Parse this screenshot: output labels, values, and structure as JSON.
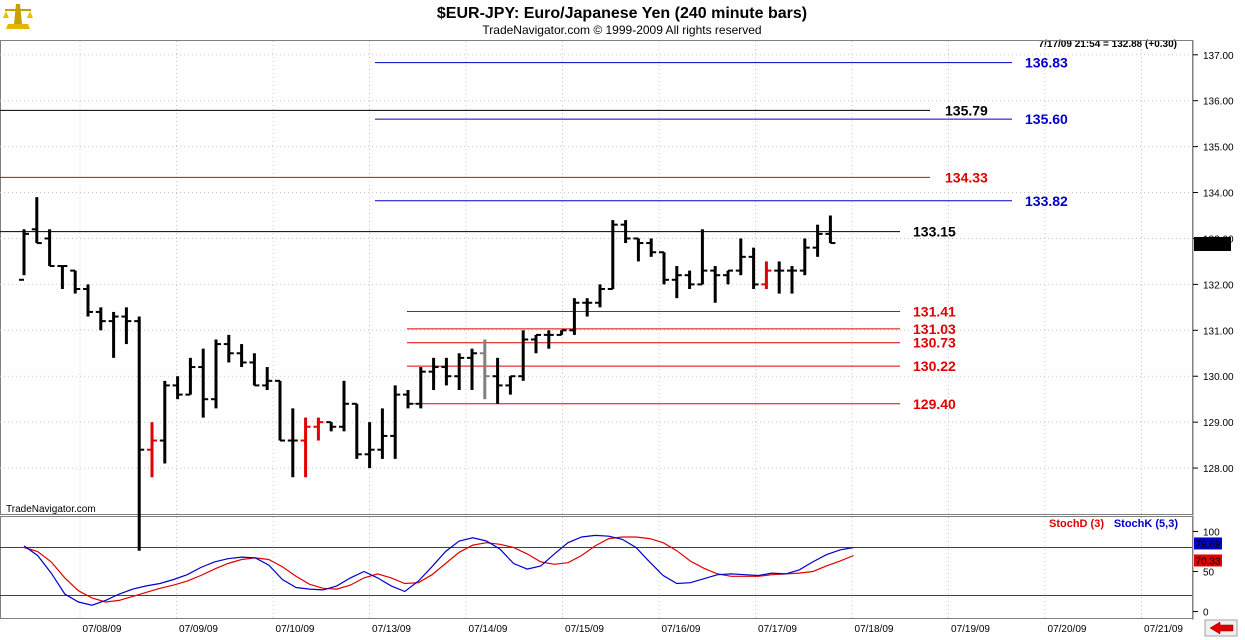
{
  "header": {
    "title": "$EUR-JPY:  Euro/Japanese Yen  (240 minute bars)",
    "subtitle": "TradeNavigator.com © 1999-2009 All rights reserved",
    "last_info": "7/17/09 21:54 = 132.88 (+0.30)",
    "watermark": "TradeNavigator.com",
    "logo_icon": "gold-scale-logo-icon",
    "scroll_icon": "red-left-arrow-icon"
  },
  "colors": {
    "price_bar": "#000000",
    "price_bar_down": "#e00000",
    "price_bar_grey": "#808080",
    "level_blue": "#0000cc",
    "level_red": "#e00000",
    "level_black": "#000000",
    "stoch_d": "#e00000",
    "stoch_k": "#0000cc",
    "grid": "#c8c8c8"
  },
  "chart_data": [
    {
      "type": "bar",
      "subtype": "ohlc",
      "title": "$EUR-JPY:  Euro/Japanese Yen  (240 minute bars)",
      "ylim": [
        127.0,
        137.3
      ],
      "yticks": [
        128.0,
        129.0,
        130.0,
        131.0,
        132.0,
        133.0,
        134.0,
        135.0,
        136.0,
        137.0
      ],
      "ytick_labels": [
        "128.00",
        "129.00",
        "130.00",
        "131.00",
        "132.00",
        "133.00",
        "134.00",
        "135.00",
        "136.00",
        "137.00"
      ],
      "xticks": [
        "07/08/09",
        "07/09/09",
        "07/10/09",
        "07/13/09",
        "07/14/09",
        "07/15/09",
        "07/16/09",
        "07/17/09",
        "07/18/09",
        "07/19/09",
        "07/20/09",
        "07/21/09"
      ],
      "grid": true,
      "last_price": "132.88",
      "bars": [
        {
          "o": 132.1,
          "h": 133.2,
          "l": 132.2,
          "c": 133.1
        },
        {
          "o": 133.2,
          "h": 133.9,
          "l": 132.9,
          "c": 132.9
        },
        {
          "o": 133.0,
          "h": 133.2,
          "l": 132.4,
          "c": 132.4
        },
        {
          "o": 132.4,
          "h": 132.4,
          "l": 131.9,
          "c": 132.4
        },
        {
          "o": 132.3,
          "h": 132.3,
          "l": 131.8,
          "c": 131.9
        },
        {
          "o": 131.9,
          "h": 132.0,
          "l": 131.3,
          "c": 131.4
        },
        {
          "o": 131.4,
          "h": 131.5,
          "l": 131.0,
          "c": 131.2
        },
        {
          "o": 131.2,
          "h": 131.4,
          "l": 130.4,
          "c": 131.3
        },
        {
          "o": 131.3,
          "h": 131.5,
          "l": 130.7,
          "c": 131.2
        },
        {
          "o": 131.2,
          "h": 131.3,
          "l": 126.2,
          "c": 128.4
        },
        {
          "o": 128.4,
          "h": 129.0,
          "l": 127.8,
          "c": 128.6,
          "color": "red"
        },
        {
          "o": 128.6,
          "h": 129.9,
          "l": 128.1,
          "c": 129.8
        },
        {
          "o": 129.8,
          "h": 130.0,
          "l": 129.5,
          "c": 129.6
        },
        {
          "o": 129.6,
          "h": 130.4,
          "l": 129.6,
          "c": 130.2
        },
        {
          "o": 130.2,
          "h": 130.6,
          "l": 129.1,
          "c": 129.5
        },
        {
          "o": 129.5,
          "h": 130.8,
          "l": 129.3,
          "c": 130.7
        },
        {
          "o": 130.7,
          "h": 130.9,
          "l": 130.3,
          "c": 130.5
        },
        {
          "o": 130.5,
          "h": 130.7,
          "l": 130.2,
          "c": 130.3
        },
        {
          "o": 130.3,
          "h": 130.5,
          "l": 129.8,
          "c": 129.8
        },
        {
          "o": 129.8,
          "h": 130.2,
          "l": 129.7,
          "c": 129.9
        },
        {
          "o": 129.9,
          "h": 129.9,
          "l": 128.6,
          "c": 128.6
        },
        {
          "o": 128.6,
          "h": 129.3,
          "l": 127.8,
          "c": 128.6
        },
        {
          "o": 128.6,
          "h": 129.1,
          "l": 127.8,
          "c": 128.9,
          "color": "red"
        },
        {
          "o": 128.9,
          "h": 129.1,
          "l": 128.6,
          "c": 129.0,
          "color": "red"
        },
        {
          "o": 129.0,
          "h": 129.0,
          "l": 128.8,
          "c": 128.9
        },
        {
          "o": 128.9,
          "h": 129.9,
          "l": 128.8,
          "c": 129.4
        },
        {
          "o": 129.4,
          "h": 129.4,
          "l": 128.2,
          "c": 128.3
        },
        {
          "o": 128.3,
          "h": 129.0,
          "l": 128.0,
          "c": 128.4
        },
        {
          "o": 128.4,
          "h": 129.3,
          "l": 128.2,
          "c": 128.7
        },
        {
          "o": 128.7,
          "h": 129.8,
          "l": 128.2,
          "c": 129.6
        },
        {
          "o": 129.6,
          "h": 129.7,
          "l": 129.3,
          "c": 129.4
        },
        {
          "o": 129.4,
          "h": 130.2,
          "l": 129.3,
          "c": 130.1
        },
        {
          "o": 130.1,
          "h": 130.4,
          "l": 129.7,
          "c": 130.2
        },
        {
          "o": 130.2,
          "h": 130.4,
          "l": 129.8,
          "c": 130.0
        },
        {
          "o": 130.0,
          "h": 130.5,
          "l": 129.7,
          "c": 130.4
        },
        {
          "o": 130.4,
          "h": 130.6,
          "l": 129.7,
          "c": 130.5
        },
        {
          "o": 130.5,
          "h": 130.8,
          "l": 129.5,
          "c": 130.0,
          "color": "grey"
        },
        {
          "o": 130.0,
          "h": 130.4,
          "l": 129.4,
          "c": 129.8
        },
        {
          "o": 129.8,
          "h": 130.0,
          "l": 129.6,
          "c": 130.0
        },
        {
          "o": 130.0,
          "h": 131.0,
          "l": 129.9,
          "c": 130.8
        },
        {
          "o": 130.8,
          "h": 130.9,
          "l": 130.5,
          "c": 130.9
        },
        {
          "o": 130.9,
          "h": 131.0,
          "l": 130.6,
          "c": 130.9
        },
        {
          "o": 130.9,
          "h": 131.0,
          "l": 130.9,
          "c": 131.0
        },
        {
          "o": 131.0,
          "h": 131.7,
          "l": 130.9,
          "c": 131.6
        },
        {
          "o": 131.6,
          "h": 131.7,
          "l": 131.3,
          "c": 131.6
        },
        {
          "o": 131.6,
          "h": 132.0,
          "l": 131.5,
          "c": 131.9
        },
        {
          "o": 131.9,
          "h": 133.4,
          "l": 131.9,
          "c": 133.3
        },
        {
          "o": 133.3,
          "h": 133.4,
          "l": 132.9,
          "c": 133.0
        },
        {
          "o": 133.0,
          "h": 133.0,
          "l": 132.5,
          "c": 132.9
        },
        {
          "o": 132.9,
          "h": 133.0,
          "l": 132.6,
          "c": 132.7
        },
        {
          "o": 132.7,
          "h": 132.7,
          "l": 132.0,
          "c": 132.1
        },
        {
          "o": 132.1,
          "h": 132.4,
          "l": 131.7,
          "c": 132.2
        },
        {
          "o": 132.2,
          "h": 132.3,
          "l": 131.9,
          "c": 132.0
        },
        {
          "o": 132.0,
          "h": 133.2,
          "l": 132.0,
          "c": 132.3
        },
        {
          "o": 132.3,
          "h": 132.4,
          "l": 131.6,
          "c": 132.2
        },
        {
          "o": 132.2,
          "h": 132.3,
          "l": 132.0,
          "c": 132.3
        },
        {
          "o": 132.3,
          "h": 133.0,
          "l": 132.2,
          "c": 132.6
        },
        {
          "o": 132.6,
          "h": 132.8,
          "l": 131.9,
          "c": 132.0
        },
        {
          "o": 132.0,
          "h": 132.5,
          "l": 131.9,
          "c": 132.3,
          "color": "red"
        },
        {
          "o": 132.3,
          "h": 132.5,
          "l": 131.8,
          "c": 132.3
        },
        {
          "o": 132.3,
          "h": 132.4,
          "l": 131.8,
          "c": 132.3
        },
        {
          "o": 132.3,
          "h": 133.0,
          "l": 132.2,
          "c": 132.8
        },
        {
          "o": 132.8,
          "h": 133.3,
          "l": 132.6,
          "c": 133.1
        },
        {
          "o": 133.1,
          "h": 133.5,
          "l": 132.9,
          "c": 132.9
        }
      ],
      "levels": [
        {
          "value": 136.83,
          "label": "136.83",
          "color": "blue"
        },
        {
          "value": 135.79,
          "label": "135.79",
          "color": "black"
        },
        {
          "value": 135.6,
          "label": "135.60",
          "color": "blue"
        },
        {
          "value": 134.33,
          "label": "134.33",
          "color": "red"
        },
        {
          "value": 133.82,
          "label": "133.82",
          "color": "blue"
        },
        {
          "value": 133.15,
          "label": "133.15",
          "color": "black"
        },
        {
          "value": 131.41,
          "label": "131.41",
          "color": "red"
        },
        {
          "value": 131.03,
          "label": "131.03",
          "color": "red"
        },
        {
          "value": 130.73,
          "label": "130.73",
          "color": "red"
        },
        {
          "value": 130.22,
          "label": "130.22",
          "color": "red"
        },
        {
          "value": 129.4,
          "label": "129.40",
          "color": "red"
        }
      ]
    },
    {
      "type": "line",
      "ylim": [
        -8,
        118
      ],
      "yticks": [
        0,
        50,
        100
      ],
      "ytick_labels": [
        "0",
        "50",
        "100"
      ],
      "reference_lines": [
        80,
        20
      ],
      "legend": "top-right",
      "series": [
        {
          "name": "StochD (3)",
          "color": "red",
          "last": "70.33",
          "values": [
            80,
            75,
            62,
            42,
            26,
            17,
            12,
            14,
            19,
            24,
            29,
            33,
            38,
            45,
            53,
            60,
            65,
            67,
            65,
            56,
            44,
            34,
            29,
            28,
            33,
            42,
            47,
            42,
            35,
            36,
            46,
            60,
            74,
            83,
            86,
            84,
            80,
            72,
            62,
            59,
            61,
            70,
            82,
            91,
            93,
            93,
            91,
            86,
            76,
            63,
            54,
            47,
            44,
            44,
            44,
            46,
            47,
            48,
            50,
            57,
            63,
            70
          ]
        },
        {
          "name": "StochK (5,3)",
          "color": "blue",
          "last": "79.69",
          "values": [
            82,
            70,
            48,
            22,
            12,
            8,
            14,
            22,
            28,
            32,
            35,
            40,
            46,
            55,
            62,
            66,
            68,
            67,
            58,
            40,
            30,
            28,
            27,
            32,
            42,
            50,
            42,
            32,
            25,
            38,
            56,
            75,
            88,
            92,
            88,
            78,
            60,
            53,
            57,
            72,
            86,
            93,
            95,
            94,
            90,
            80,
            62,
            45,
            35,
            36,
            41,
            46,
            47,
            46,
            45,
            48,
            47,
            52,
            62,
            71,
            77,
            80
          ]
        }
      ]
    }
  ]
}
